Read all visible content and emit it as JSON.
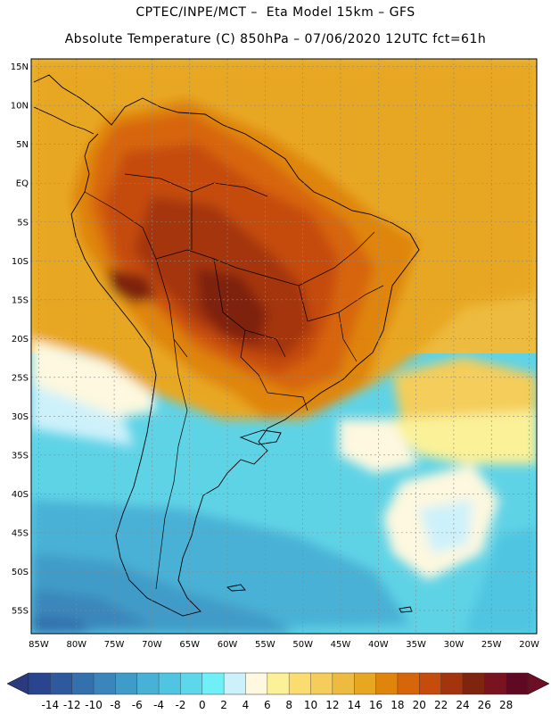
{
  "header": {
    "title_line1": "CPTEC/INPE/MCT –  Eta Model 15km – GFS",
    "title_line2": "Absolute Temperature (C) 850hPa – 07/06/2020 12UTC fct=61h"
  },
  "map": {
    "lat_labels": [
      "15N",
      "10N",
      "5N",
      "EQ",
      "5S",
      "10S",
      "15S",
      "20S",
      "25S",
      "30S",
      "35S",
      "40S",
      "45S",
      "50S",
      "55S"
    ],
    "lon_labels": [
      "85W",
      "80W",
      "75W",
      "70W",
      "65W",
      "60W",
      "55W",
      "50W",
      "45W",
      "40W",
      "35W",
      "30W",
      "25W",
      "20W"
    ],
    "extent": {
      "lon_min": -86,
      "lon_max": -19,
      "lat_min": -58,
      "lat_max": 16
    }
  },
  "colorbar": {
    "levels": [
      "-14",
      "-12",
      "-10",
      "-8",
      "-6",
      "-4",
      "-2",
      "0",
      "2",
      "4",
      "6",
      "8",
      "10",
      "12",
      "14",
      "16",
      "18",
      "20",
      "22",
      "24",
      "26",
      "28"
    ],
    "colors": [
      "#2a4590",
      "#2e5a9d",
      "#3370ac",
      "#3a86bb",
      "#3f9bc8",
      "#48b1d6",
      "#4fc5e1",
      "#5cd8ea",
      "#6ff0f6",
      "#cdf1fa",
      "#fdf8df",
      "#fbf198",
      "#fadc71",
      "#f4cd5a",
      "#edbb40",
      "#e8a721",
      "#df850b",
      "#d7650a",
      "#c54c0c",
      "#a4340d",
      "#7e240f",
      "#7a1320",
      "#5f0a22"
    ],
    "under_color": "#2a3a7d",
    "over_color": "#6c0f24"
  }
}
